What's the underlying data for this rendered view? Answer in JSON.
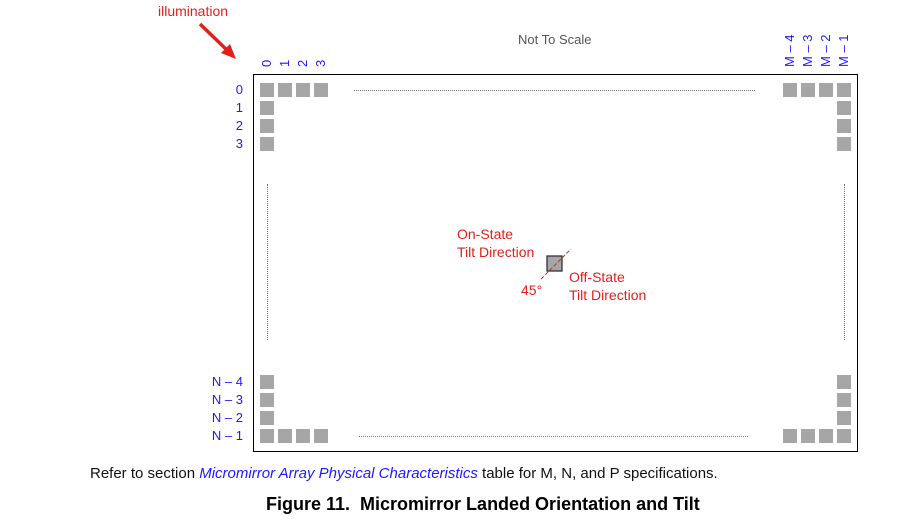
{
  "illumination_label": "illumination",
  "scale_note": "Not To Scale",
  "col_labels_left": [
    "0",
    "1",
    "2",
    "3"
  ],
  "col_labels_right": [
    "M – 4",
    "M – 3",
    "M – 2",
    "M – 1"
  ],
  "row_labels_top": [
    "0",
    "1",
    "2",
    "3"
  ],
  "row_labels_bottom": [
    "N – 4",
    "N – 3",
    "N – 2",
    "N – 1"
  ],
  "on_state": "On-State\nTilt Direction",
  "off_state": "Off-State\nTilt Direction",
  "angle_label": "45°",
  "note_prefix": "Refer to section ",
  "note_link": "Micromirror Array Physical Characteristics",
  "note_suffix": " table for M, N, and P specifications.",
  "figure_caption": "Figure 11.  Micromirror Landed Orientation and Tilt",
  "colors": {
    "annotation_red": "#e0201b",
    "label_blue": "#1a1aff",
    "mirror_gray": "#a6a6a6"
  }
}
